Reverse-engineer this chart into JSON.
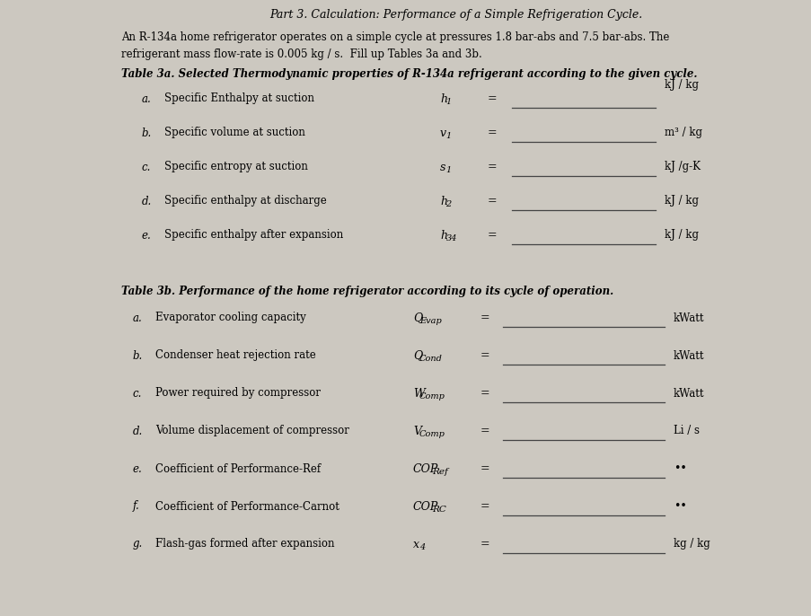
{
  "bg_color": "#ccc8c0",
  "title_line1": "Part 3. Calculation: Performance of a Simple Refrigeration Cycle.",
  "intro_line1": "An R-134a home refrigerator operates on a simple cycle at pressures 1.8 bar-abs and 7.5 bar-abs. The",
  "intro_line2": "refrigerant mass flow-rate is 0.005 kg / s.  Fill up Tables 3a and 3b.",
  "table3a_title": "Table 3a. Selected Thermodynamic properties of R-134a refrigerant according to the given cycle.",
  "table3a_rows": [
    {
      "letter": "a",
      "desc": "Specific Enthalpy at suction",
      "sym_main": "h",
      "sym_sub": "1",
      "unit": "kJ / kg"
    },
    {
      "letter": "b",
      "desc": "Specific volume at suction",
      "sym_main": "v",
      "sym_sub": "1",
      "unit": "m³ / kg"
    },
    {
      "letter": "c",
      "desc": "Specific entropy at suction",
      "sym_main": "s",
      "sym_sub": "1",
      "unit": "kJ /g-K"
    },
    {
      "letter": "d",
      "desc": "Specific enthalpy at discharge",
      "sym_main": "h",
      "sym_sub": "2",
      "unit": "kJ / kg"
    },
    {
      "letter": "e",
      "desc": "Specific enthalpy after expansion",
      "sym_main": "h",
      "sym_sub": "34",
      "unit": "kJ / kg"
    }
  ],
  "table3b_title": "Table 3b. Performance of the home refrigerator according to its cycle of operation.",
  "table3b_rows": [
    {
      "letter": "a",
      "desc": "Evaporator cooling capacity",
      "sym_main": "Q",
      "sym_sub": "Evap",
      "unit": "kWatt"
    },
    {
      "letter": "b",
      "desc": "Condenser heat rejection rate",
      "sym_main": "Q",
      "sym_sub": "Cond",
      "unit": "kWatt"
    },
    {
      "letter": "c",
      "desc": "Power required by compressor",
      "sym_main": "W",
      "sym_sub": "Comp",
      "unit": "kWatt"
    },
    {
      "letter": "d",
      "desc": "Volume displacement of compressor",
      "sym_main": "V",
      "sym_sub": "Comp",
      "unit": "Li / s"
    },
    {
      "letter": "e",
      "desc": "Coefficient of Performance-Ref",
      "sym_main": "COP",
      "sym_sub": "Ref",
      "unit": ".."
    },
    {
      "letter": "f",
      "desc": "Coefficient of Performance-Carnot",
      "sym_main": "COP",
      "sym_sub": "RC",
      "unit": ".."
    },
    {
      "letter": "g",
      "desc": "Flash-gas formed after expansion",
      "sym_main": "x",
      "sym_sub": "4",
      "unit": "kg / kg"
    }
  ]
}
